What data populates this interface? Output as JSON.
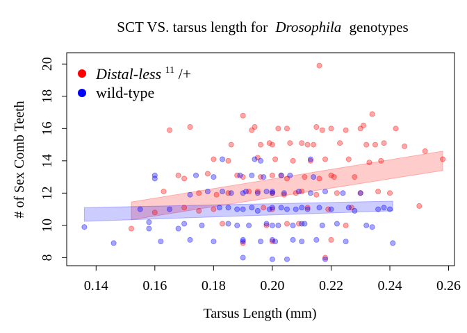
{
  "chart_data": {
    "type": "scatter",
    "title_main": "SCT VS. tarsus length for",
    "title_italic": "Drosophila",
    "title_tail": "genotypes",
    "xlabel": "Tarsus Length (mm)",
    "ylabel": "# of Sex Comb Teeth",
    "xlim": [
      0.13,
      0.262
    ],
    "ylim": [
      7.5,
      20.7
    ],
    "xticks": [
      "0.14",
      "0.16",
      "0.18",
      "0.20",
      "0.22",
      "0.24",
      "0.26"
    ],
    "yticks": [
      "8",
      "10",
      "12",
      "14",
      "16",
      "18",
      "20"
    ],
    "legend_position": "top-left",
    "legend": [
      {
        "italic": "Distal-less",
        "sup": "11",
        "tail": "/+",
        "color": "#ff0000"
      },
      {
        "label": "wild-type",
        "color": "#0000ff"
      }
    ],
    "series": [
      {
        "color": "#ff0000",
        "fit": {
          "x": [
            0.152,
            0.258
          ],
          "y": [
            11.0,
            14.0
          ],
          "band_lo": [
            10.35,
            13.4
          ],
          "band_hi": [
            11.45,
            14.6
          ]
        },
        "points": [
          [
            0.152,
            9.8
          ],
          [
            0.16,
            10.8
          ],
          [
            0.165,
            15.9
          ],
          [
            0.172,
            16.1
          ],
          [
            0.17,
            11.1
          ],
          [
            0.163,
            12.1
          ],
          [
            0.168,
            13.1
          ],
          [
            0.175,
            12.0
          ],
          [
            0.178,
            13.2
          ],
          [
            0.18,
            14.1
          ],
          [
            0.181,
            11.9
          ],
          [
            0.183,
            10.1
          ],
          [
            0.185,
            14.0
          ],
          [
            0.186,
            15.0
          ],
          [
            0.188,
            13.1
          ],
          [
            0.19,
            16.8
          ],
          [
            0.19,
            8.9
          ],
          [
            0.192,
            12.1
          ],
          [
            0.193,
            15.9
          ],
          [
            0.194,
            16.1
          ],
          [
            0.195,
            14.2
          ],
          [
            0.196,
            13.0
          ],
          [
            0.197,
            11.1
          ],
          [
            0.198,
            10.0
          ],
          [
            0.199,
            15.1
          ],
          [
            0.2,
            15.0
          ],
          [
            0.2,
            12.0
          ],
          [
            0.201,
            14.1
          ],
          [
            0.202,
            16.0
          ],
          [
            0.203,
            13.1
          ],
          [
            0.204,
            11.9
          ],
          [
            0.205,
            16.0
          ],
          [
            0.206,
            15.1
          ],
          [
            0.207,
            14.0
          ],
          [
            0.208,
            12.0
          ],
          [
            0.209,
            10.1
          ],
          [
            0.21,
            15.1
          ],
          [
            0.211,
            13.0
          ],
          [
            0.212,
            11.1
          ],
          [
            0.213,
            14.0
          ],
          [
            0.214,
            15.0
          ],
          [
            0.215,
            16.1
          ],
          [
            0.216,
            19.9
          ],
          [
            0.216,
            12.9
          ],
          [
            0.217,
            15.9
          ],
          [
            0.218,
            14.1
          ],
          [
            0.219,
            11.0
          ],
          [
            0.22,
            16.0
          ],
          [
            0.22,
            9.1
          ],
          [
            0.221,
            13.0
          ],
          [
            0.222,
            12.0
          ],
          [
            0.223,
            15.1
          ],
          [
            0.225,
            15.9
          ],
          [
            0.226,
            14.1
          ],
          [
            0.227,
            11.1
          ],
          [
            0.228,
            13.0
          ],
          [
            0.23,
            16.0
          ],
          [
            0.231,
            16.2
          ],
          [
            0.232,
            15.0
          ],
          [
            0.233,
            13.9
          ],
          [
            0.234,
            16.9
          ],
          [
            0.235,
            15.0
          ],
          [
            0.236,
            12.1
          ],
          [
            0.237,
            14.0
          ],
          [
            0.238,
            15.1
          ],
          [
            0.24,
            12.0
          ],
          [
            0.242,
            16.0
          ],
          [
            0.245,
            14.9
          ],
          [
            0.25,
            11.2
          ],
          [
            0.252,
            14.6
          ],
          [
            0.258,
            14.1
          ],
          [
            0.205,
            12.9
          ],
          [
            0.195,
            12.1
          ],
          [
            0.185,
            12.0
          ],
          [
            0.21,
            12.1
          ],
          [
            0.2,
            13.1
          ],
          [
            0.19,
            13.0
          ],
          [
            0.175,
            10.9
          ],
          [
            0.2,
            11.0
          ],
          [
            0.22,
            13.1
          ],
          [
            0.215,
            11.9
          ],
          [
            0.218,
            8.0
          ],
          [
            0.225,
            10.0
          ],
          [
            0.23,
            12.0
          ],
          [
            0.2,
            9.0
          ],
          [
            0.205,
            10.1
          ],
          [
            0.17,
            12.9
          ],
          [
            0.18,
            11.0
          ],
          [
            0.212,
            15.0
          ],
          [
            0.196,
            15.0
          ]
        ]
      },
      {
        "color": "#0000ff",
        "fit": {
          "x": [
            0.136,
            0.241
          ],
          "y": [
            10.7,
            11.15
          ],
          "band_lo": [
            10.25,
            10.9
          ],
          "band_hi": [
            11.1,
            11.5
          ]
        },
        "points": [
          [
            0.136,
            9.9
          ],
          [
            0.146,
            8.9
          ],
          [
            0.155,
            11.0
          ],
          [
            0.158,
            10.2
          ],
          [
            0.158,
            9.8
          ],
          [
            0.16,
            13.1
          ],
          [
            0.16,
            12.9
          ],
          [
            0.162,
            9.0
          ],
          [
            0.165,
            11.0
          ],
          [
            0.168,
            9.8
          ],
          [
            0.17,
            10.1
          ],
          [
            0.172,
            11.9
          ],
          [
            0.172,
            9.1
          ],
          [
            0.174,
            13.1
          ],
          [
            0.176,
            10.0
          ],
          [
            0.178,
            12.1
          ],
          [
            0.18,
            13.0
          ],
          [
            0.18,
            9.0
          ],
          [
            0.182,
            11.1
          ],
          [
            0.183,
            14.1
          ],
          [
            0.185,
            10.1
          ],
          [
            0.186,
            12.0
          ],
          [
            0.188,
            11.0
          ],
          [
            0.189,
            13.1
          ],
          [
            0.19,
            8.0
          ],
          [
            0.19,
            9.0
          ],
          [
            0.191,
            12.1
          ],
          [
            0.192,
            10.0
          ],
          [
            0.193,
            11.1
          ],
          [
            0.194,
            14.1
          ],
          [
            0.195,
            12.0
          ],
          [
            0.196,
            9.0
          ],
          [
            0.197,
            13.0
          ],
          [
            0.198,
            10.1
          ],
          [
            0.199,
            11.0
          ],
          [
            0.2,
            12.1
          ],
          [
            0.2,
            7.9
          ],
          [
            0.201,
            9.0
          ],
          [
            0.202,
            10.0
          ],
          [
            0.203,
            11.1
          ],
          [
            0.204,
            12.0
          ],
          [
            0.205,
            7.9
          ],
          [
            0.206,
            13.1
          ],
          [
            0.207,
            10.0
          ],
          [
            0.208,
            11.0
          ],
          [
            0.209,
            12.1
          ],
          [
            0.21,
            9.0
          ],
          [
            0.211,
            10.1
          ],
          [
            0.212,
            11.0
          ],
          [
            0.213,
            12.0
          ],
          [
            0.214,
            13.0
          ],
          [
            0.215,
            9.1
          ],
          [
            0.216,
            11.1
          ],
          [
            0.217,
            10.0
          ],
          [
            0.218,
            12.1
          ],
          [
            0.218,
            7.9
          ],
          [
            0.22,
            11.0
          ],
          [
            0.222,
            10.1
          ],
          [
            0.224,
            12.0
          ],
          [
            0.225,
            9.0
          ],
          [
            0.226,
            11.1
          ],
          [
            0.228,
            10.9
          ],
          [
            0.23,
            12.0
          ],
          [
            0.232,
            10.0
          ],
          [
            0.234,
            9.9
          ],
          [
            0.236,
            11.0
          ],
          [
            0.238,
            11.1
          ],
          [
            0.24,
            11.0
          ],
          [
            0.241,
            8.9
          ],
          [
            0.2,
            11.1
          ],
          [
            0.19,
            11.0
          ],
          [
            0.195,
            10.9
          ],
          [
            0.205,
            11.0
          ],
          [
            0.185,
            11.1
          ],
          [
            0.21,
            11.1
          ],
          [
            0.2,
            12.0
          ],
          [
            0.19,
            12.0
          ],
          [
            0.198,
            12.1
          ],
          [
            0.188,
            10.0
          ],
          [
            0.2,
            10.0
          ],
          [
            0.21,
            10.1
          ],
          [
            0.203,
            13.1
          ],
          [
            0.193,
            13.1
          ],
          [
            0.183,
            12.1
          ],
          [
            0.2,
            9.1
          ],
          [
            0.19,
            9.1
          ],
          [
            0.207,
            9.1
          ],
          [
            0.196,
            14.0
          ],
          [
            0.213,
            14.1
          ]
        ]
      }
    ]
  }
}
